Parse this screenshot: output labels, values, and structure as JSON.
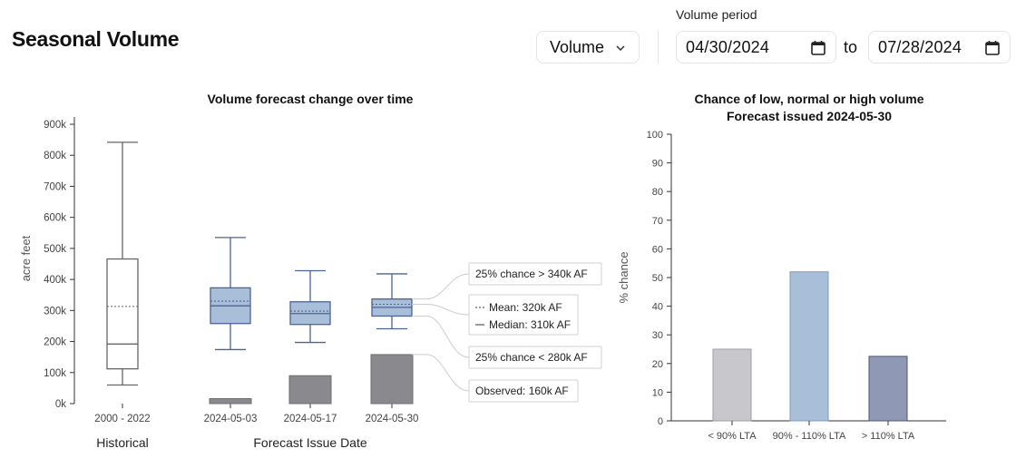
{
  "header": {
    "title": "Seasonal Volume",
    "select": {
      "value": "Volume"
    },
    "period": {
      "label": "Volume period",
      "start": "04/30/2024",
      "to": "to",
      "end": "07/28/2024"
    }
  },
  "chart_data": [
    {
      "type": "box",
      "title": "Volume forecast change over time",
      "ylabel": "acre feet",
      "ylim": [
        0,
        900000
      ],
      "yticks": [
        "0k",
        "100k",
        "200k",
        "300k",
        "400k",
        "500k",
        "600k",
        "700k",
        "800k",
        "900k"
      ],
      "groups": [
        "Historical",
        "Forecast Issue Date"
      ],
      "categories": [
        "2000 - 2022",
        "2024-05-03",
        "2024-05-17",
        "2024-05-30"
      ],
      "boxes": [
        {
          "category": "2000 - 2022",
          "min": 60000,
          "q1": 112000,
          "median": 192000,
          "mean": 313000,
          "q3": 466000,
          "max": 842000,
          "fill": "#ffffff"
        },
        {
          "category": "2024-05-03",
          "min": 174000,
          "q1": 258000,
          "median": 315000,
          "mean": 330000,
          "q3": 373000,
          "max": 535000,
          "fill": "#a9bfd9"
        },
        {
          "category": "2024-05-17",
          "min": 197000,
          "q1": 255000,
          "median": 290000,
          "mean": 298000,
          "q3": 328000,
          "max": 428000,
          "fill": "#a9bfd9"
        },
        {
          "category": "2024-05-30",
          "min": 241000,
          "q1": 282000,
          "median": 310000,
          "mean": 320000,
          "q3": 337000,
          "max": 418000,
          "fill": "#a9bfd9"
        }
      ],
      "observed": [
        {
          "category": "2024-05-03",
          "value": 16000
        },
        {
          "category": "2024-05-17",
          "value": 90000
        },
        {
          "category": "2024-05-30",
          "value": 158000
        }
      ],
      "annotations": {
        "upper": "25% chance > 340k AF",
        "mean": "Mean: 320k AF",
        "median": "Median: 310k AF",
        "lower": "25% chance < 280k AF",
        "observed": "Observed: 160k AF"
      },
      "colors": {
        "box_stroke": "#4c6494",
        "observed": "#8a8a8e",
        "historical_stroke": "#666666"
      }
    },
    {
      "type": "bar",
      "title": "Chance of low, normal or high volume",
      "subtitle": "Forecast issued 2024-05-30",
      "ylabel": "% chance",
      "ylim": [
        0,
        100
      ],
      "categories": [
        "< 90% LTA",
        "90% - 110% LTA",
        "> 110% LTA"
      ],
      "values": [
        25,
        52,
        22.5
      ],
      "colors": [
        "#c8c8cc",
        "#a9bfd9",
        "#8f99b5"
      ]
    }
  ]
}
